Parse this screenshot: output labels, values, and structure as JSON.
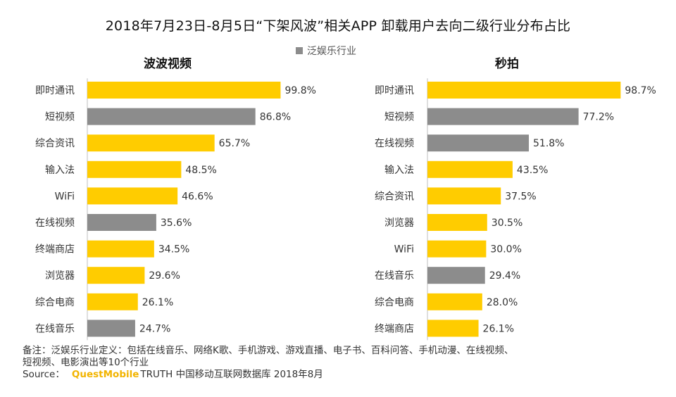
{
  "title": "2018年7月23日-8月5日“下架风波”相关APP 卸载用户去向二级行业分布占比",
  "legend": {
    "label": "泛娱乐行业",
    "color": "#8c8c8c"
  },
  "colors": {
    "highlight": "#ffcc00",
    "gray": "#8c8c8c"
  },
  "notes": {
    "line1": "备注：泛娱乐行业定义：包括在线音乐、网络K歌、手机游戏、游戏直播、电子书、百科问答、手机动漫、在线视频、",
    "line2": "短视频、电影演出等10个行业",
    "source_label": "Source：",
    "source_brand": "QuestMobile",
    "source_rest": "TRUTH 中国移动互联网数据库 2018年8月"
  },
  "chart_data": [
    {
      "type": "bar",
      "orientation": "horizontal",
      "title": "波波视频",
      "categories": [
        "即时通讯",
        "短视频",
        "综合资讯",
        "输入法",
        "WiFi",
        "在线视频",
        "终端商店",
        "浏览器",
        "综合电商",
        "在线音乐"
      ],
      "values": [
        99.8,
        86.8,
        65.7,
        48.5,
        46.6,
        35.6,
        34.5,
        29.6,
        26.1,
        24.7
      ],
      "value_labels": [
        "99.8%",
        "86.8%",
        "65.7%",
        "48.5%",
        "46.6%",
        "35.6%",
        "34.5%",
        "29.6%",
        "26.1%",
        "24.7%"
      ],
      "pan_entertainment": [
        false,
        true,
        false,
        false,
        false,
        true,
        false,
        false,
        false,
        true
      ],
      "xlim": [
        0,
        100
      ],
      "unit": "%"
    },
    {
      "type": "bar",
      "orientation": "horizontal",
      "title": "秒拍",
      "categories": [
        "即时通讯",
        "短视频",
        "在线视频",
        "输入法",
        "综合资讯",
        "浏览器",
        "WiFi",
        "在线音乐",
        "综合电商",
        "终端商店"
      ],
      "values": [
        98.7,
        77.2,
        51.8,
        43.5,
        37.5,
        30.5,
        30.0,
        29.4,
        28.0,
        26.1
      ],
      "value_labels": [
        "98.7%",
        "77.2%",
        "51.8%",
        "43.5%",
        "37.5%",
        "30.5%",
        "30.0%",
        "29.4%",
        "28.0%",
        "26.1%"
      ],
      "pan_entertainment": [
        false,
        true,
        true,
        false,
        false,
        false,
        false,
        true,
        false,
        false
      ],
      "xlim": [
        0,
        100
      ],
      "unit": "%"
    }
  ]
}
